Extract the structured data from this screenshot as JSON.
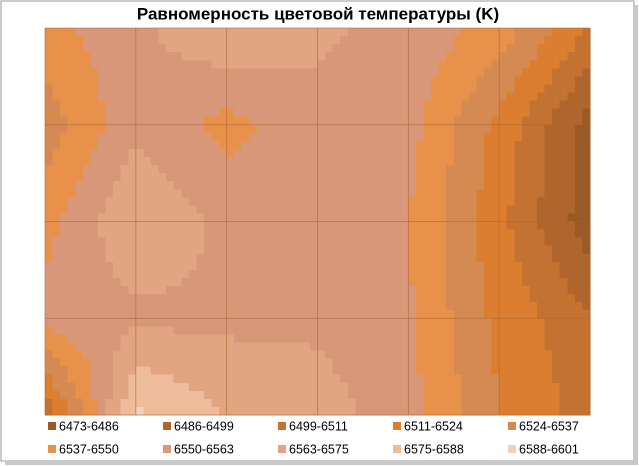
{
  "chart_data": {
    "type": "contour",
    "title": "Равномерность цветовой температуры (K)",
    "level_edges": [
      6473,
      6486,
      6499,
      6511,
      6524,
      6537,
      6550,
      6563,
      6575,
      6588,
      6601
    ],
    "legend_labels": [
      "6473-6486",
      "6486-6499",
      "6499-6511",
      "6511-6524",
      "6524-6537",
      "6537-6550",
      "6550-6563",
      "6563-6575",
      "6575-6588",
      "6588-6601"
    ],
    "colors": [
      "#9a5a26",
      "#b0652c",
      "#c47231",
      "#dc7e30",
      "#d58a52",
      "#e8914a",
      "#d9977a",
      "#e2a582",
      "#eebb9b",
      "#f4d0bb"
    ],
    "z": [
      [
        6545,
        6560,
        6575,
        6565,
        6560,
        6545,
        6510
      ],
      [
        6530,
        6560,
        6545,
        6560,
        6555,
        6520,
        6480
      ],
      [
        6545,
        6575,
        6560,
        6560,
        6550,
        6515,
        6478
      ],
      [
        6555,
        6560,
        6560,
        6560,
        6552,
        6520,
        6500
      ],
      [
        6500,
        6590,
        6575,
        6570,
        6555,
        6525,
        6505
      ]
    ]
  }
}
